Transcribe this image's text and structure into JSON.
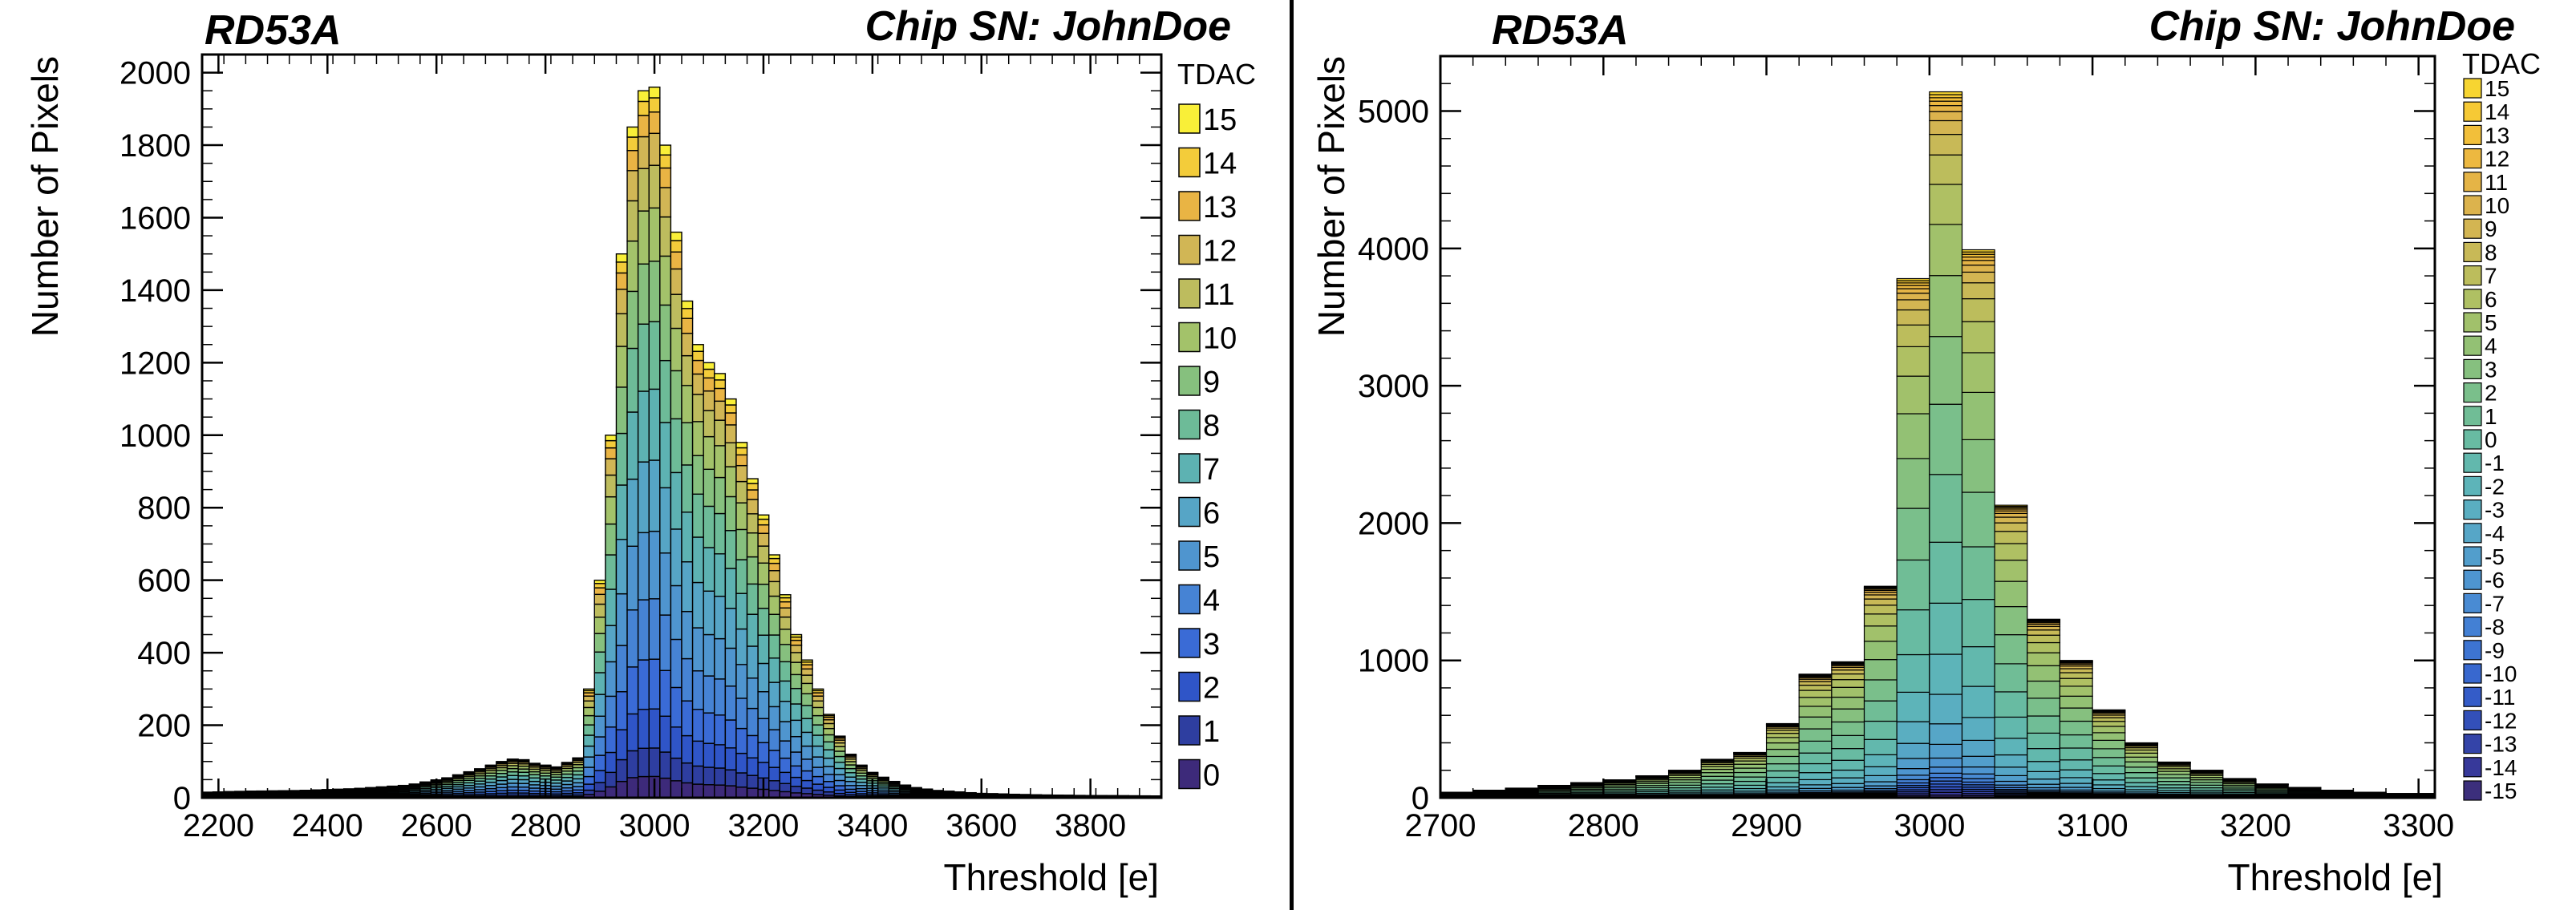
{
  "left": {
    "chip_label": "RD53A",
    "serial_label": "Chip SN: JohnDoe",
    "chart_data": {
      "type": "bar",
      "stacked": true,
      "histogram": true,
      "xlabel": "Threshold [e]",
      "ylabel": "Number of Pixels",
      "xlim": [
        2170,
        3930
      ],
      "ylim": [
        0,
        2050
      ],
      "xticks": [
        2200,
        2400,
        2600,
        2800,
        3000,
        3200,
        3400,
        3600,
        3800
      ],
      "yticks": [
        0,
        200,
        400,
        600,
        800,
        1000,
        1200,
        1400,
        1600,
        1800,
        2000
      ],
      "legend_title": "TDAC",
      "legend_position": "right",
      "total": [
        [
          2170,
          15
        ],
        [
          2250,
          18
        ],
        [
          2350,
          20
        ],
        [
          2450,
          25
        ],
        [
          2550,
          35
        ],
        [
          2620,
          55
        ],
        [
          2680,
          80
        ],
        [
          2720,
          100
        ],
        [
          2750,
          110
        ],
        [
          2780,
          95
        ],
        [
          2820,
          85
        ],
        [
          2860,
          110
        ],
        [
          2880,
          300
        ],
        [
          2900,
          600
        ],
        [
          2920,
          1000
        ],
        [
          2940,
          1500
        ],
        [
          2960,
          1850
        ],
        [
          2980,
          1950
        ],
        [
          3000,
          1960
        ],
        [
          3020,
          1800
        ],
        [
          3040,
          1560
        ],
        [
          3060,
          1370
        ],
        [
          3080,
          1250
        ],
        [
          3100,
          1200
        ],
        [
          3120,
          1170
        ],
        [
          3140,
          1100
        ],
        [
          3160,
          980
        ],
        [
          3180,
          880
        ],
        [
          3200,
          780
        ],
        [
          3220,
          670
        ],
        [
          3240,
          560
        ],
        [
          3260,
          450
        ],
        [
          3280,
          380
        ],
        [
          3300,
          300
        ],
        [
          3320,
          230
        ],
        [
          3340,
          170
        ],
        [
          3360,
          120
        ],
        [
          3380,
          90
        ],
        [
          3400,
          70
        ],
        [
          3430,
          50
        ],
        [
          3470,
          30
        ],
        [
          3520,
          20
        ],
        [
          3600,
          12
        ],
        [
          3700,
          8
        ],
        [
          3800,
          6
        ],
        [
          3930,
          5
        ]
      ],
      "series": [
        {
          "name": "0",
          "color": "#3d2a7a",
          "frac": 0.03
        },
        {
          "name": "1",
          "color": "#2e3ea0",
          "frac": 0.04
        },
        {
          "name": "2",
          "color": "#2f55c8",
          "frac": 0.055
        },
        {
          "name": "3",
          "color": "#3a6bd6",
          "frac": 0.07
        },
        {
          "name": "4",
          "color": "#4683d4",
          "frac": 0.085
        },
        {
          "name": "5",
          "color": "#4f95cf",
          "frac": 0.095
        },
        {
          "name": "6",
          "color": "#56a5c6",
          "frac": 0.1
        },
        {
          "name": "7",
          "color": "#5db2b2",
          "frac": 0.1
        },
        {
          "name": "8",
          "color": "#6dbb98",
          "frac": 0.095
        },
        {
          "name": "9",
          "color": "#86c07e",
          "frac": 0.085
        },
        {
          "name": "10",
          "color": "#a3c26a",
          "frac": 0.075
        },
        {
          "name": "11",
          "color": "#bdbc5e",
          "frac": 0.06
        },
        {
          "name": "12",
          "color": "#d1b655",
          "frac": 0.045
        },
        {
          "name": "13",
          "color": "#e9b444",
          "frac": 0.03
        },
        {
          "name": "14",
          "color": "#f3cc3a",
          "frac": 0.02
        },
        {
          "name": "15",
          "color": "#f9ef38",
          "frac": 0.015
        }
      ]
    }
  },
  "right": {
    "chip_label": "RD53A",
    "serial_label": "Chip SN: JohnDoe",
    "chart_data": {
      "type": "bar",
      "stacked": true,
      "histogram": true,
      "xlabel": "Threshold [e]",
      "ylabel": "Number of Pixels",
      "xlim": [
        2700,
        3310
      ],
      "ylim": [
        0,
        5400
      ],
      "xticks": [
        2700,
        2800,
        2900,
        3000,
        3100,
        3200,
        3300
      ],
      "yticks": [
        0,
        1000,
        2000,
        3000,
        4000,
        5000
      ],
      "legend_title": "TDAC",
      "legend_position": "right",
      "bin_width": 20,
      "totals": [
        [
          2700,
          40
        ],
        [
          2720,
          55
        ],
        [
          2740,
          70
        ],
        [
          2760,
          90
        ],
        [
          2780,
          110
        ],
        [
          2800,
          130
        ],
        [
          2820,
          160
        ],
        [
          2840,
          200
        ],
        [
          2860,
          280
        ],
        [
          2880,
          330
        ],
        [
          2900,
          540
        ],
        [
          2920,
          900
        ],
        [
          2940,
          990
        ],
        [
          2960,
          1540
        ],
        [
          2980,
          3780
        ],
        [
          3000,
          5140
        ],
        [
          3020,
          3990
        ],
        [
          3040,
          2130
        ],
        [
          3060,
          1300
        ],
        [
          3080,
          1000
        ],
        [
          3100,
          640
        ],
        [
          3120,
          400
        ],
        [
          3140,
          260
        ],
        [
          3160,
          200
        ],
        [
          3180,
          140
        ],
        [
          3200,
          100
        ],
        [
          3220,
          75
        ],
        [
          3240,
          55
        ],
        [
          3260,
          40
        ],
        [
          3280,
          30
        ],
        [
          3300,
          30
        ]
      ],
      "series": [
        {
          "name": "-15",
          "color": "#3c2f7c"
        },
        {
          "name": "-14",
          "color": "#37399a"
        },
        {
          "name": "-13",
          "color": "#3444a8"
        },
        {
          "name": "-12",
          "color": "#3350b9"
        },
        {
          "name": "-11",
          "color": "#345cc8"
        },
        {
          "name": "-10",
          "color": "#3868cf"
        },
        {
          "name": "-9",
          "color": "#3d74d2"
        },
        {
          "name": "-8",
          "color": "#4380d4"
        },
        {
          "name": "-7",
          "color": "#498bd3"
        },
        {
          "name": "-6",
          "color": "#4e95d0"
        },
        {
          "name": "-5",
          "color": "#529ecc"
        },
        {
          "name": "-4",
          "color": "#56a6c7"
        },
        {
          "name": "-3",
          "color": "#5aaec1"
        },
        {
          "name": "-2",
          "color": "#5db4b9"
        },
        {
          "name": "-1",
          "color": "#62b8ad"
        },
        {
          "name": "0",
          "color": "#68bba2"
        },
        {
          "name": "1",
          "color": "#70bd96"
        },
        {
          "name": "2",
          "color": "#7abf8b"
        },
        {
          "name": "3",
          "color": "#86c07f"
        },
        {
          "name": "4",
          "color": "#93c174"
        },
        {
          "name": "5",
          "color": "#a1c16b"
        },
        {
          "name": "6",
          "color": "#afc063"
        },
        {
          "name": "7",
          "color": "#bcbd5c"
        },
        {
          "name": "8",
          "color": "#c8b957"
        },
        {
          "name": "9",
          "color": "#d3b552"
        },
        {
          "name": "10",
          "color": "#dcb34d"
        },
        {
          "name": "11",
          "color": "#e5b446"
        },
        {
          "name": "12",
          "color": "#edb840"
        },
        {
          "name": "13",
          "color": "#f2bf3a"
        },
        {
          "name": "14",
          "color": "#f6c935"
        },
        {
          "name": "15",
          "color": "#f7d531"
        }
      ]
    }
  }
}
